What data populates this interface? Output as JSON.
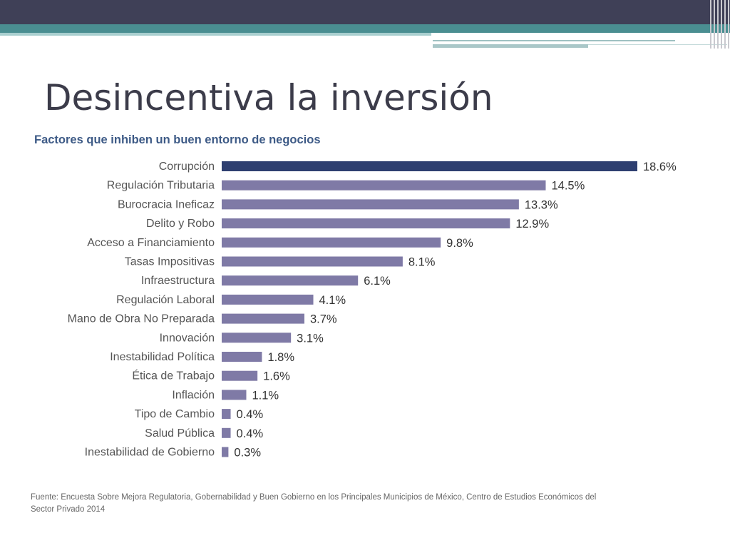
{
  "slide": {
    "title": "Desincentiva la inversión"
  },
  "colors": {
    "header_dark": "#3f4057",
    "header_teal": "#4a8e91",
    "bar_highlight": "#2e3f70",
    "bar_default": "#7f7aa6",
    "label_text": "#555555",
    "value_text": "#333333"
  },
  "chart_data": {
    "type": "bar",
    "orientation": "horizontal",
    "title": "Factores que inhiben un buen entorno de negocios",
    "categories": [
      "Corrupción",
      "Regulación Tributaria",
      "Burocracia Ineficaz",
      "Delito y Robo",
      "Acceso a Financiamiento",
      "Tasas Impositivas",
      "Infraestructura",
      "Regulación Laboral",
      "Mano de Obra No Preparada",
      "Innovación",
      "Inestabilidad Política",
      "Ética de Trabajo",
      "Inflación",
      "Tipo de Cambio",
      "Salud Pública",
      "Inestabilidad de Gobierno"
    ],
    "values": [
      18.6,
      14.5,
      13.3,
      12.9,
      9.8,
      8.1,
      6.1,
      4.1,
      3.7,
      3.1,
      1.8,
      1.6,
      1.1,
      0.4,
      0.4,
      0.3
    ],
    "value_labels": [
      "18.6%",
      "14.5%",
      "13.3%",
      "12.9%",
      "9.8%",
      "8.1%",
      "6.1%",
      "4.1%",
      "3.7%",
      "3.1%",
      "1.8%",
      "1.6%",
      "1.1%",
      "0.4%",
      "0.4%",
      "0.3%"
    ],
    "highlight_index": 0,
    "xlim": [
      0,
      18.6
    ],
    "grid": false,
    "legend": "none"
  },
  "source": {
    "text": "Fuente: Encuesta Sobre Mejora Regulatoria, Gobernabilidad y Buen Gobierno en los Principales Municipios de México, Centro de Estudios Económicos del Sector Privado 2014"
  }
}
